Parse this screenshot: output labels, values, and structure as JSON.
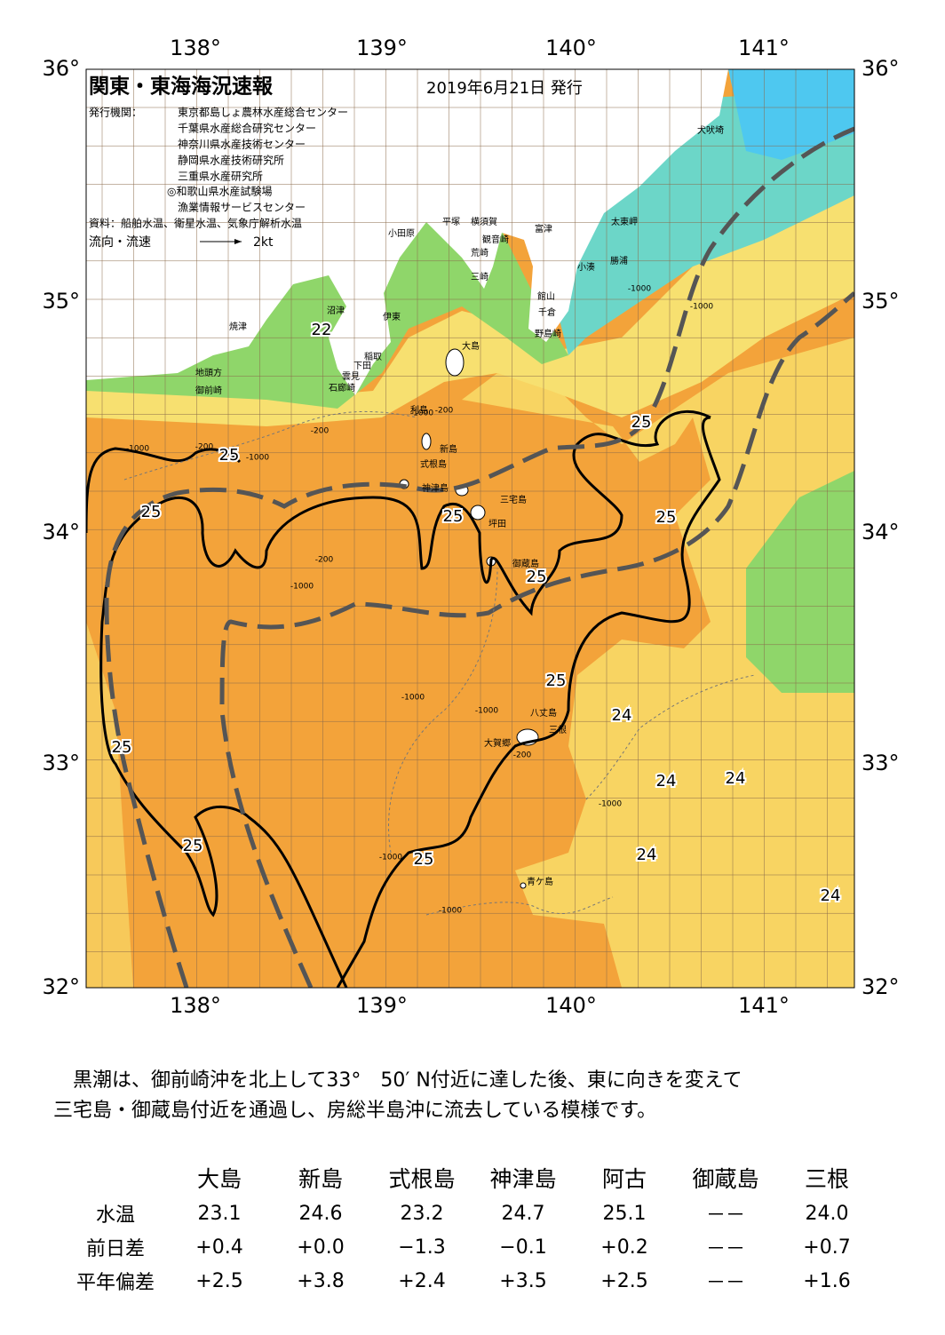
{
  "header": {
    "title": "関東・東海海況速報",
    "date": "2019年6月21日 発行",
    "issuer_label": "発行機関：",
    "issuers": [
      "東京都島しょ農林水産総合センター",
      "千葉県水産総合研究センター",
      "神奈川県水産技術センター",
      "静岡県水産技術研究所",
      "三重県水産研究所",
      "◎和歌山県水産試験場",
      "漁業情報サービスセンター"
    ],
    "source": "資料：船舶水温、衛星水温、気象庁解析水温",
    "legend_label": "流向・流速",
    "legend_speed": "2kt"
  },
  "axes": {
    "lon_labels": [
      "138°",
      "139°",
      "140°",
      "141°"
    ],
    "lat_labels": [
      "36°",
      "35°",
      "34°",
      "33°",
      "32°"
    ]
  },
  "place_names": [
    "犬吠埼",
    "太東岬",
    "勝浦",
    "小湊",
    "富津",
    "館山",
    "千倉",
    "野島崎",
    "平塚",
    "横須賀",
    "観音崎",
    "荒崎",
    "三崎",
    "小田原",
    "沼津",
    "伊東",
    "大島",
    "焼津",
    "稲取",
    "下田",
    "雲見",
    "石廊崎",
    "地頭方",
    "御前崎",
    "利島",
    "新島",
    "式根島",
    "神津島",
    "三宅島",
    "坪田",
    "御蔵島",
    "八丈島",
    "三根",
    "大賀郷",
    "青ケ島"
  ],
  "contour_labels": [
    "22",
    "25",
    "25",
    "25",
    "25",
    "25",
    "25",
    "25",
    "25",
    "25",
    "25",
    "24",
    "24",
    "24",
    "24",
    "24"
  ],
  "depth_labels": [
    "-1000",
    "-200",
    "-1000",
    "-200",
    "-1000",
    "-200",
    "-1000",
    "-200",
    "-1000",
    "-1000",
    "-1000",
    "-1000",
    "-200",
    "-1000",
    "-1000",
    "-1000"
  ],
  "description": [
    "黒潮は、御前崎沖を北上して33°　50′ N付近に達した後、東に向きを変えて",
    "三宅島・御蔵島付近を通過し、房総半島沖に流去している模様です。"
  ],
  "table": {
    "columns": [
      "大島",
      "新島",
      "式根島",
      "神津島",
      "阿古",
      "御蔵島",
      "三根"
    ],
    "rows": [
      [
        "水温",
        "23.1",
        "24.6",
        "23.2",
        "24.7",
        "25.1",
        "－－",
        "24.0"
      ],
      [
        "前日差",
        "+0.4",
        "+0.0",
        "−1.3",
        "−0.1",
        "+0.2",
        "－－",
        "+0.7"
      ],
      [
        "平年偏差",
        "+2.5",
        "+3.8",
        "+2.4",
        "+3.5",
        "+2.5",
        "－－",
        "+1.6"
      ]
    ]
  }
}
